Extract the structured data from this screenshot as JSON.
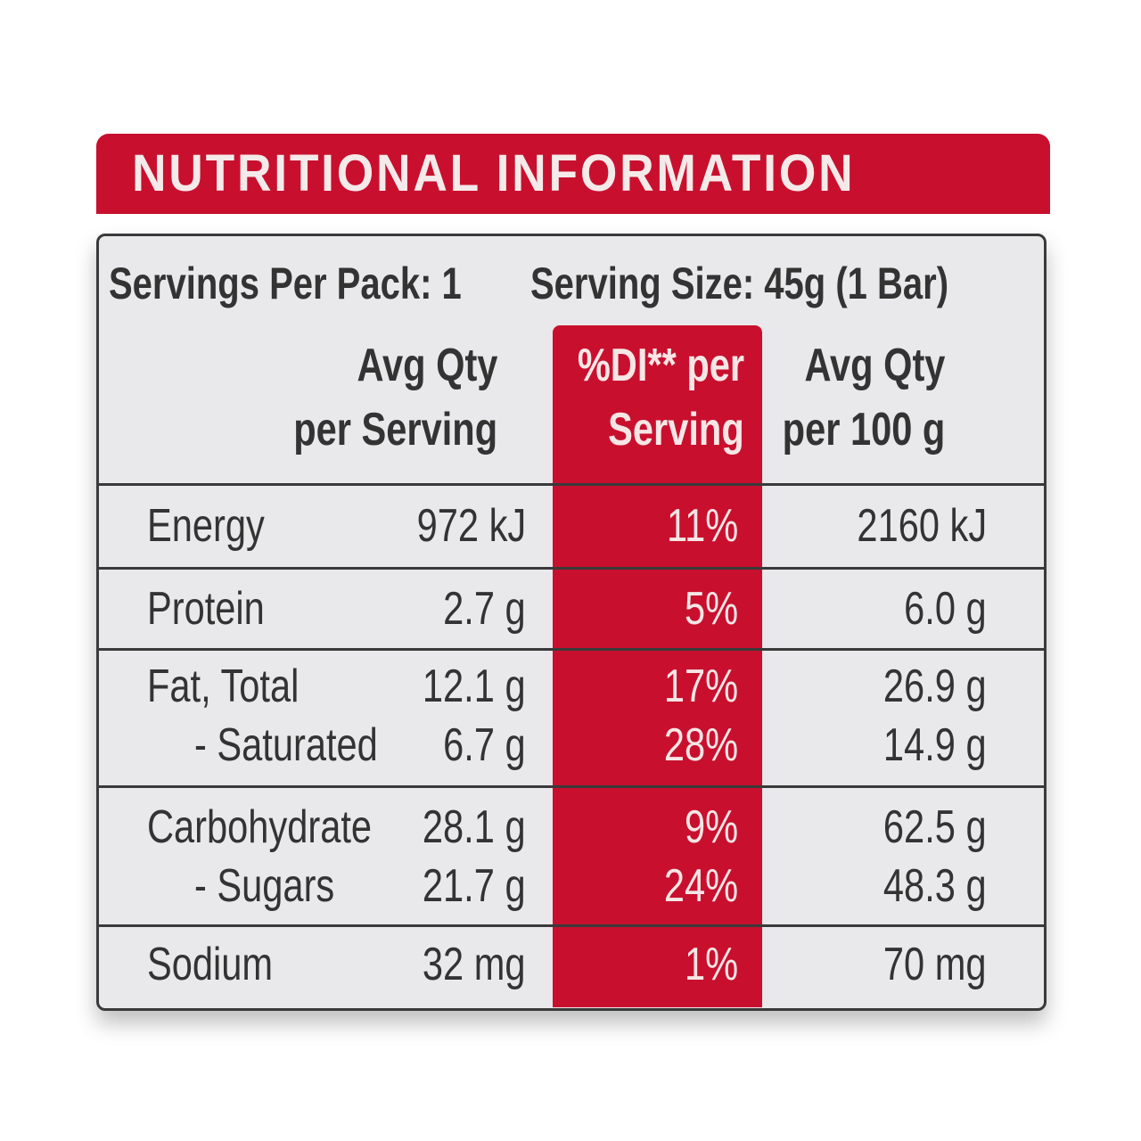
{
  "header": {
    "title": "NUTRITIONAL INFORMATION"
  },
  "serving": {
    "per_pack": "Servings Per Pack: 1",
    "size": "Serving Size: 45g (1 Bar)"
  },
  "columns": [
    {
      "lines": [
        "Avg Qty",
        "per Serving"
      ]
    },
    {
      "lines": [
        "%DI** per",
        "Serving"
      ]
    },
    {
      "lines": [
        "Avg Qty",
        "per 100 g"
      ]
    }
  ],
  "groups": [
    {
      "rows": [
        [
          "Energy",
          "972 kJ",
          "11%",
          "2160 kJ"
        ]
      ]
    },
    {
      "rows": [
        [
          "Protein",
          "2.7 g",
          "5%",
          "6.0 g"
        ]
      ]
    },
    {
      "rows": [
        [
          "Fat, Total",
          "12.1 g",
          "17%",
          "26.9 g"
        ],
        [
          "- Saturated",
          "6.7 g",
          "28%",
          "14.9 g"
        ]
      ]
    },
    {
      "rows": [
        [
          "Carbohydrate",
          "28.1 g",
          "9%",
          "62.5 g"
        ],
        [
          "- Sugars",
          "21.7 g",
          "24%",
          "48.3 g"
        ]
      ]
    },
    {
      "rows": [
        [
          "Sodium",
          "32 mg",
          "1%",
          "70 mg"
        ]
      ]
    }
  ]
}
